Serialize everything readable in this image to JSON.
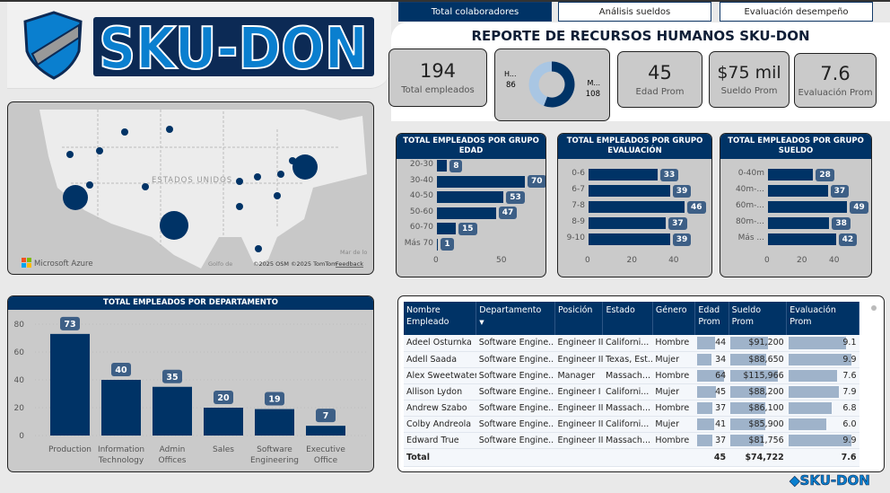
{
  "brand": {
    "logo_text": "SKU-DON",
    "accent": "#003366",
    "logo_blue": "#0a7fcf"
  },
  "tabs": [
    {
      "label": "Total colaboradores",
      "active": true
    },
    {
      "label": "Análisis sueldos",
      "active": false
    },
    {
      "label": "Evaluación desempeño",
      "active": false
    }
  ],
  "header": {
    "title": "REPORTE DE RECURSOS HUMANOS SKU-DON"
  },
  "kpis": {
    "total": {
      "value": "194",
      "label": "Total empleados"
    },
    "edad": {
      "value": "45",
      "label": "Edad Prom"
    },
    "sueldo": {
      "value": "$75 mil",
      "label": "Sueldo Prom"
    },
    "eval": {
      "value": "7.6",
      "label": "Evaluación Prom"
    }
  },
  "map": {
    "country_label": "ESTADOS UNIDOS",
    "provider": "Microsoft Azure",
    "copyright": "©2025 OSM ©2025 TomTom",
    "feedback": "Feedback",
    "gulf": "Golfo de",
    "sea": "Mar de lo"
  },
  "chart_data": [
    {
      "type": "pie",
      "variant": "donut",
      "categories": [
        "H...",
        "M..."
      ],
      "values": [
        86,
        108
      ],
      "colors": [
        "#a9c6e3",
        "#003366"
      ]
    },
    {
      "type": "bar",
      "orientation": "horizontal",
      "title": "TOTAL EMPLEADOS POR GRUPO EDAD",
      "categories": [
        "20-30",
        "30-40",
        "40-50",
        "50-60",
        "60-70",
        "Más 70"
      ],
      "values": [
        8,
        70,
        53,
        47,
        15,
        1
      ],
      "xticks": [
        "0",
        "50"
      ],
      "xlim": [
        0,
        75
      ]
    },
    {
      "type": "bar",
      "orientation": "horizontal",
      "title": "TOTAL EMPLEADOS POR GRUPO EVALUACIÓN",
      "categories": [
        "0-6",
        "6-7",
        "7-8",
        "8-9",
        "9-10"
      ],
      "values": [
        33,
        39,
        46,
        37,
        39
      ],
      "xticks": [
        "0",
        "20",
        "40"
      ],
      "xlim": [
        0,
        52
      ]
    },
    {
      "type": "bar",
      "orientation": "horizontal",
      "title": "TOTAL EMPLEADOS POR GRUPO SUELDO",
      "categories": [
        "0-40m",
        "40m-...",
        "60m-...",
        "80m-...",
        "Más ..."
      ],
      "values": [
        28,
        37,
        49,
        38,
        42
      ],
      "xticks": [
        "0",
        "20",
        "40"
      ],
      "xlim": [
        0,
        55
      ]
    },
    {
      "type": "bar",
      "title": "TOTAL EMPLEADOS POR DEPARTAMENTO",
      "categories": [
        "Production",
        "Information Technology",
        "Admin Offices",
        "Sales",
        "Software Engineering",
        "Executive Office"
      ],
      "values": [
        73,
        40,
        35,
        20,
        19,
        7
      ],
      "yticks": [
        "0",
        "20",
        "40",
        "60",
        "80"
      ],
      "ylim": [
        0,
        80
      ]
    }
  ],
  "table": {
    "columns": [
      "Nombre Empleado",
      "Departamento",
      "Posición",
      "Estado",
      "Género",
      "Edad Prom",
      "Sueldo Prom",
      "Evaluación Prom"
    ],
    "rows": [
      [
        "Adeel Osturnka",
        "Software Engine...",
        "Engineer II",
        "Californi...",
        "Hombre",
        "44",
        "$91,200",
        "9.1"
      ],
      [
        "Adell Saada",
        "Software Engine...",
        "Engineer II",
        "Texas, Est...",
        "Mujer",
        "34",
        "$88,650",
        "9.9"
      ],
      [
        "Alex Sweetwater",
        "Software Engine...",
        "Manager",
        "Massach...",
        "Hombre",
        "64",
        "$115,966",
        "7.6"
      ],
      [
        "Allison Lydon",
        "Software Engine...",
        "Engineer I",
        "Californi...",
        "Mujer",
        "45",
        "$88,200",
        "7.9"
      ],
      [
        "Andrew Szabo",
        "Software Engine...",
        "Engineer II",
        "Massach...",
        "Hombre",
        "37",
        "$86,100",
        "6.8"
      ],
      [
        "Colby Andreola",
        "Software Engine...",
        "Engineer II",
        "Californi...",
        "Mujer",
        "41",
        "$85,900",
        "6.0"
      ],
      [
        "Edward True",
        "Software Engine...",
        "Engineer II",
        "Massach...",
        "Hombre",
        "37",
        "$81,756",
        "9.9"
      ]
    ],
    "total": {
      "label": "Total",
      "edad": "45",
      "sueldo": "$74,722",
      "eval": "7.6"
    }
  }
}
